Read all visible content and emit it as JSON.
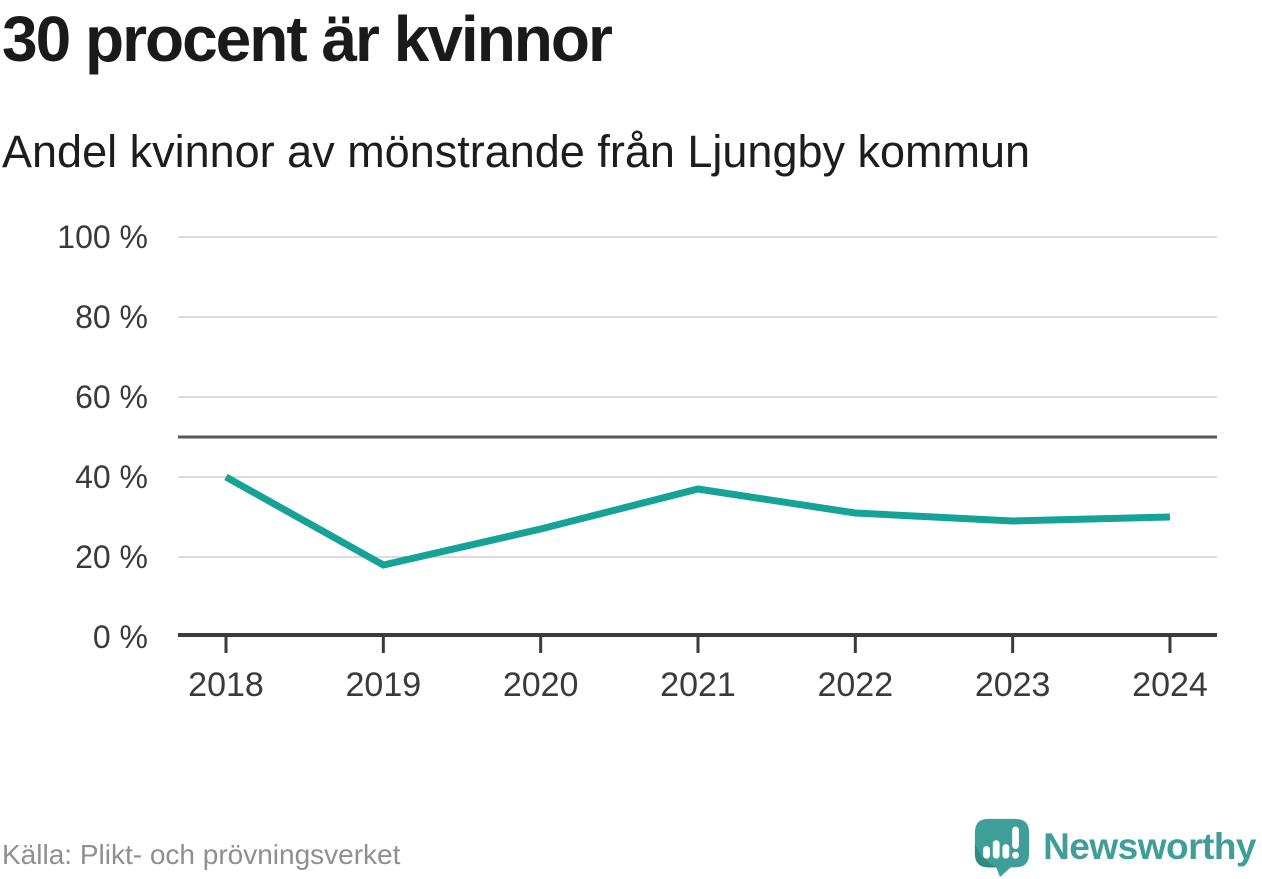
{
  "title": "30 procent är kvinnor",
  "subtitle": "Andel kvinnor av mönstrande från Ljungby kommun",
  "footer": {
    "source": "Källa: Plikt- och prövningsverket"
  },
  "logo": {
    "brand": "Newsworthy",
    "icon": "newsworthy-speech-bubble-bar-chart-icon"
  },
  "colors": {
    "line": "#14a396",
    "grid": "#dcdcdc",
    "reference_line": "#58585b",
    "axis": "#3b3b3b",
    "tick_text": "#3a3a3a",
    "logo_teal": "#3f9e97",
    "logo_teal_dark": "#2f8b82"
  },
  "chart_data": {
    "type": "line",
    "x": [
      2018,
      2019,
      2020,
      2021,
      2022,
      2023,
      2024
    ],
    "series": [
      {
        "name": "Andel kvinnor av mönstrande",
        "values": [
          40,
          18,
          27,
          37,
          31,
          29,
          30
        ]
      }
    ],
    "unit": "%",
    "title": "Andel kvinnor av mönstrande från Ljungby kommun",
    "xlabel": "",
    "ylabel": "",
    "ylim": [
      0,
      100
    ],
    "y_ticks": [
      0,
      20,
      40,
      60,
      80,
      100
    ],
    "y_tick_format": "{v} %",
    "reference_line": 50,
    "grid": true,
    "legend": "none"
  }
}
